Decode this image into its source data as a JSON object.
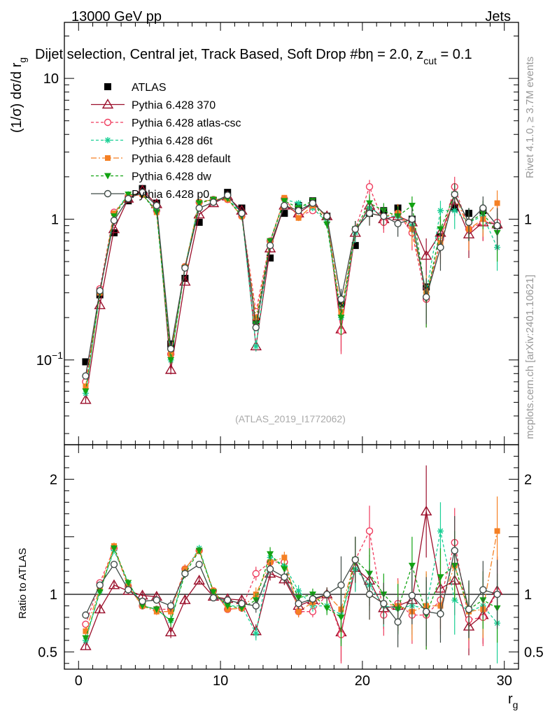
{
  "header": {
    "left": "13000 GeV pp",
    "right": "Jets",
    "title_main": "Dijet selection, Central jet, Track Based, Soft Drop #b",
    "title_eta": "η = 2.0, z",
    "title_cut": "cut",
    "title_value": " = 0.1"
  },
  "side": {
    "rivet": "Rivet 4.1.0, ≥ 3.7M events",
    "mcplots": "mcplots.cern.ch [arXiv:2401.10621]"
  },
  "watermark": "(ATLAS_2019_I1772062)",
  "colors": {
    "data": "#000000",
    "p370": "#9b0f2b",
    "atlascsc": "#ef3b5d",
    "d6t": "#19cf94",
    "default": "#f58024",
    "dw": "#13a313",
    "p0": "#3f4a46"
  },
  "chart_data": [
    {
      "type": "scatter",
      "name": "main",
      "ylabel": "(1/σ) dσ/d r",
      "ylabel_sub": "g",
      "yscale": "log",
      "ylim": [
        0.025,
        25
      ],
      "xlim": [
        -1,
        31
      ],
      "yticks": [
        {
          "value": 10,
          "label": "10"
        },
        {
          "value": 1,
          "label": "1"
        },
        {
          "value": 0.1,
          "label": "10",
          "sup": "−1"
        }
      ],
      "x": [
        0.5,
        1.5,
        2.5,
        3.5,
        4.5,
        5.5,
        6.5,
        7.5,
        8.5,
        9.5,
        10.5,
        11.5,
        12.5,
        13.5,
        14.5,
        15.5,
        16.5,
        17.5,
        18.5,
        19.5,
        20.5,
        21.5,
        22.5,
        23.5,
        24.5,
        25.5,
        26.5,
        27.5,
        28.5,
        29.5
      ],
      "series": [
        {
          "name": "ATLAS",
          "key": "data",
          "marker": "square",
          "values": [
            0.097,
            0.29,
            0.8,
            1.35,
            1.65,
            1.3,
            0.13,
            0.38,
            0.95,
            1.35,
            1.55,
            1.2,
            0.19,
            0.53,
            1.1,
            1.25,
            1.35,
            1.05,
            0.25,
            0.65,
            1.1,
            1.15,
            1.2,
            1.0,
            0.33,
            0.75,
            1.2,
            1.1,
            1.15,
            0.9
          ],
          "errors": [
            0.004,
            0.008,
            0.02,
            0.03,
            0.03,
            0.03,
            0.005,
            0.01,
            0.02,
            0.03,
            0.03,
            0.03,
            0.008,
            0.015,
            0.03,
            0.04,
            0.04,
            0.04,
            0.015,
            0.03,
            0.05,
            0.05,
            0.06,
            0.06,
            0.03,
            0.06,
            0.08,
            0.09,
            0.1,
            0.1
          ]
        },
        {
          "name": "Pythia 6.428 370",
          "key": "p370",
          "marker": "triangle-open",
          "values": [
            0.052,
            0.245,
            0.85,
            1.4,
            1.6,
            1.28,
            0.085,
            0.36,
            1.08,
            1.3,
            1.45,
            1.15,
            0.125,
            0.62,
            1.25,
            1.1,
            1.3,
            1.05,
            0.165,
            0.8,
            1.25,
            1.0,
            1.05,
            0.95,
            0.55,
            0.8,
            1.35,
            0.78,
            0.95,
            0.92
          ],
          "errors": [
            0.003,
            0.01,
            0.03,
            0.04,
            0.04,
            0.04,
            0.006,
            0.015,
            0.03,
            0.04,
            0.04,
            0.04,
            0.01,
            0.03,
            0.05,
            0.05,
            0.06,
            0.06,
            0.05,
            0.12,
            0.2,
            0.15,
            0.18,
            0.2,
            0.18,
            0.2,
            0.3,
            0.25,
            0.25,
            0.3
          ]
        },
        {
          "name": "Pythia 6.428 atlas-csc",
          "key": "atlascsc",
          "marker": "circle-open",
          "values": [
            0.07,
            0.32,
            1.12,
            1.45,
            1.5,
            1.15,
            0.11,
            0.46,
            1.32,
            1.38,
            1.38,
            1.05,
            0.22,
            0.7,
            1.4,
            1.05,
            1.15,
            1.05,
            0.16,
            0.85,
            1.7,
            0.95,
            1.1,
            0.8,
            0.27,
            0.72,
            1.7,
            0.85,
            0.95,
            0.95
          ],
          "errors": [
            0.003,
            0.01,
            0.03,
            0.04,
            0.04,
            0.04,
            0.006,
            0.015,
            0.03,
            0.04,
            0.04,
            0.04,
            0.01,
            0.03,
            0.05,
            0.05,
            0.06,
            0.06,
            0.05,
            0.12,
            0.2,
            0.15,
            0.18,
            0.2,
            0.1,
            0.2,
            0.3,
            0.25,
            0.25,
            0.3
          ]
        },
        {
          "name": "Pythia 6.428 d6t",
          "key": "d6t",
          "marker": "star",
          "values": [
            0.058,
            0.3,
            1.1,
            1.5,
            1.5,
            1.15,
            0.1,
            0.46,
            1.33,
            1.38,
            1.4,
            1.1,
            0.125,
            0.7,
            1.38,
            1.3,
            1.2,
            0.95,
            0.2,
            0.8,
            1.2,
            1.05,
            1.05,
            0.9,
            0.3,
            1.15,
            1.15,
            0.95,
            1.05,
            0.63
          ],
          "errors": [
            0.003,
            0.01,
            0.03,
            0.04,
            0.04,
            0.04,
            0.006,
            0.015,
            0.03,
            0.04,
            0.04,
            0.04,
            0.01,
            0.03,
            0.05,
            0.05,
            0.06,
            0.06,
            0.05,
            0.12,
            0.2,
            0.15,
            0.18,
            0.2,
            0.1,
            0.2,
            0.3,
            0.25,
            0.25,
            0.2
          ]
        },
        {
          "name": "Pythia 6.428 default",
          "key": "default",
          "marker": "square-filled",
          "values": [
            0.065,
            0.3,
            1.1,
            1.45,
            1.5,
            1.12,
            0.11,
            0.46,
            1.32,
            1.38,
            1.38,
            1.05,
            0.2,
            0.68,
            1.42,
            1.02,
            1.25,
            1.05,
            0.22,
            0.85,
            1.1,
            1.05,
            1.1,
            0.85,
            0.3,
            0.68,
            1.5,
            0.85,
            1.0,
            1.3
          ],
          "errors": [
            0.003,
            0.01,
            0.03,
            0.04,
            0.04,
            0.04,
            0.006,
            0.015,
            0.03,
            0.04,
            0.04,
            0.04,
            0.01,
            0.03,
            0.05,
            0.05,
            0.06,
            0.06,
            0.05,
            0.12,
            0.2,
            0.15,
            0.18,
            0.2,
            0.1,
            0.2,
            0.3,
            0.25,
            0.25,
            0.3
          ]
        },
        {
          "name": "Pythia 6.428 dw",
          "key": "dw",
          "marker": "triangle-down",
          "values": [
            0.06,
            0.3,
            1.05,
            1.5,
            1.5,
            1.12,
            0.1,
            0.45,
            1.3,
            1.38,
            1.4,
            1.05,
            0.18,
            0.7,
            1.35,
            1.2,
            1.35,
            0.92,
            0.2,
            0.85,
            1.3,
            1.15,
            1.05,
            1.25,
            0.27,
            0.85,
            1.5,
            0.95,
            1.1,
            0.8
          ],
          "errors": [
            0.003,
            0.01,
            0.03,
            0.04,
            0.04,
            0.04,
            0.006,
            0.015,
            0.03,
            0.04,
            0.04,
            0.04,
            0.01,
            0.03,
            0.05,
            0.05,
            0.06,
            0.06,
            0.05,
            0.12,
            0.2,
            0.15,
            0.18,
            0.2,
            0.1,
            0.2,
            0.3,
            0.25,
            0.25,
            0.3
          ]
        },
        {
          "name": "Pythia 6.428 p0",
          "key": "p0",
          "marker": "circle-open",
          "values": [
            0.077,
            0.31,
            0.98,
            1.4,
            1.55,
            1.25,
            0.12,
            0.45,
            1.2,
            1.32,
            1.48,
            1.1,
            0.17,
            0.65,
            1.25,
            1.15,
            1.3,
            1.05,
            0.27,
            0.85,
            1.1,
            1.05,
            0.93,
            1.0,
            0.28,
            0.63,
            1.5,
            0.95,
            1.2,
            0.9
          ],
          "errors": [
            0.003,
            0.01,
            0.03,
            0.04,
            0.04,
            0.04,
            0.006,
            0.015,
            0.03,
            0.04,
            0.04,
            0.04,
            0.01,
            0.03,
            0.05,
            0.05,
            0.06,
            0.06,
            0.05,
            0.12,
            0.2,
            0.15,
            0.18,
            0.2,
            0.1,
            0.2,
            0.3,
            0.25,
            0.25,
            0.3
          ]
        }
      ]
    },
    {
      "type": "scatter",
      "name": "ratio",
      "ylabel": "Ratio to ATLAS",
      "xlabel": "r",
      "xlabel_sub": "g",
      "yscale": "linear",
      "ylim": [
        0.35,
        2.3
      ],
      "xlim": [
        -1,
        31
      ],
      "yticks": [
        {
          "value": 0.5,
          "label": "0.5"
        },
        {
          "value": 1,
          "label": "1"
        },
        {
          "value": 2,
          "label": "2"
        }
      ],
      "xticks": [
        {
          "value": 0,
          "label": "0"
        },
        {
          "value": 10,
          "label": "10"
        },
        {
          "value": 20,
          "label": "20"
        },
        {
          "value": 30,
          "label": "30"
        }
      ],
      "x": [
        0.5,
        1.5,
        2.5,
        3.5,
        4.5,
        5.5,
        6.5,
        7.5,
        8.5,
        9.5,
        10.5,
        11.5,
        12.5,
        13.5,
        14.5,
        15.5,
        16.5,
        17.5,
        18.5,
        19.5,
        20.5,
        21.5,
        22.5,
        23.5,
        24.5,
        25.5,
        26.5,
        27.5,
        28.5,
        29.5
      ],
      "series": [
        {
          "name": "Pythia 6.428 370",
          "key": "p370",
          "marker": "triangle-open",
          "values": [
            0.55,
            0.87,
            1.08,
            1.03,
            0.99,
            0.98,
            0.67,
            0.95,
            1.12,
            0.98,
            0.96,
            0.95,
            0.68,
            1.18,
            1.13,
            0.9,
            0.95,
            1.0,
            0.67,
            1.23,
            1.12,
            0.88,
            0.9,
            0.95,
            1.72,
            1.05,
            1.12,
            0.72,
            0.82,
            1.03
          ],
          "errors": [
            0.03,
            0.03,
            0.03,
            0.03,
            0.03,
            0.03,
            0.05,
            0.04,
            0.03,
            0.03,
            0.03,
            0.03,
            0.06,
            0.06,
            0.05,
            0.05,
            0.05,
            0.06,
            0.25,
            0.2,
            0.22,
            0.18,
            0.22,
            0.25,
            0.4,
            0.25,
            0.3,
            0.25,
            0.25,
            0.3
          ]
        },
        {
          "name": "Pythia 6.428 atlas-csc",
          "key": "atlascsc",
          "marker": "circle-open",
          "values": [
            0.74,
            1.1,
            1.4,
            1.07,
            0.9,
            0.87,
            0.87,
            1.22,
            1.38,
            1.03,
            0.87,
            0.88,
            1.18,
            1.28,
            1.28,
            0.85,
            0.85,
            1.0,
            0.65,
            1.3,
            1.55,
            0.82,
            0.92,
            0.82,
            0.82,
            0.95,
            1.45,
            0.78,
            0.8,
            1.02
          ],
          "errors": [
            0.03,
            0.03,
            0.03,
            0.03,
            0.03,
            0.03,
            0.05,
            0.04,
            0.03,
            0.03,
            0.03,
            0.03,
            0.06,
            0.06,
            0.05,
            0.05,
            0.05,
            0.06,
            0.25,
            0.2,
            0.22,
            0.18,
            0.22,
            0.25,
            0.3,
            0.25,
            0.3,
            0.25,
            0.25,
            0.3
          ]
        },
        {
          "name": "Pythia 6.428 d6t",
          "key": "d6t",
          "marker": "star",
          "values": [
            0.6,
            1.03,
            1.38,
            1.1,
            0.9,
            0.87,
            0.77,
            1.2,
            1.4,
            1.02,
            0.9,
            0.9,
            0.66,
            1.32,
            1.25,
            1.03,
            0.9,
            0.9,
            0.82,
            1.22,
            1.08,
            0.9,
            0.88,
            0.9,
            0.88,
            1.55,
            0.95,
            0.85,
            0.9,
            0.75
          ],
          "errors": [
            0.03,
            0.03,
            0.03,
            0.03,
            0.03,
            0.03,
            0.05,
            0.04,
            0.03,
            0.03,
            0.03,
            0.03,
            0.06,
            0.06,
            0.05,
            0.05,
            0.05,
            0.06,
            0.25,
            0.2,
            0.22,
            0.18,
            0.22,
            0.25,
            0.3,
            0.25,
            0.3,
            0.25,
            0.25,
            0.35
          ]
        },
        {
          "name": "Pythia 6.428 default",
          "key": "default",
          "marker": "square-filled",
          "values": [
            0.68,
            1.05,
            1.42,
            1.07,
            0.9,
            0.85,
            0.85,
            1.22,
            1.38,
            1.03,
            0.87,
            0.88,
            1.0,
            1.28,
            1.32,
            0.85,
            0.93,
            1.0,
            0.87,
            1.3,
            1.0,
            0.92,
            0.9,
            0.85,
            0.9,
            0.9,
            1.25,
            0.85,
            0.87,
            1.55
          ],
          "errors": [
            0.03,
            0.03,
            0.03,
            0.03,
            0.03,
            0.03,
            0.05,
            0.04,
            0.03,
            0.03,
            0.03,
            0.03,
            0.06,
            0.06,
            0.05,
            0.05,
            0.05,
            0.06,
            0.25,
            0.2,
            0.22,
            0.18,
            0.22,
            0.25,
            0.3,
            0.25,
            0.3,
            0.25,
            0.25,
            0.3
          ]
        },
        {
          "name": "Pythia 6.428 dw",
          "key": "dw",
          "marker": "triangle-down",
          "values": [
            0.62,
            1.02,
            1.4,
            1.1,
            0.9,
            0.87,
            0.77,
            1.18,
            1.38,
            1.02,
            0.9,
            0.88,
            0.95,
            1.35,
            1.22,
            0.97,
            1.0,
            0.88,
            0.8,
            1.3,
            1.18,
            1.0,
            0.87,
            1.25,
            0.82,
            1.15,
            1.25,
            0.87,
            0.95,
            0.88
          ],
          "errors": [
            0.03,
            0.03,
            0.03,
            0.03,
            0.03,
            0.03,
            0.05,
            0.04,
            0.03,
            0.03,
            0.03,
            0.03,
            0.06,
            0.06,
            0.05,
            0.05,
            0.05,
            0.06,
            0.25,
            0.2,
            0.22,
            0.18,
            0.22,
            0.25,
            0.3,
            0.25,
            0.3,
            0.25,
            0.25,
            0.3
          ]
        },
        {
          "name": "Pythia 6.428 p0",
          "key": "p0",
          "marker": "circle-open",
          "values": [
            0.82,
            1.08,
            1.26,
            1.04,
            0.94,
            0.95,
            0.9,
            1.18,
            1.26,
            0.97,
            0.95,
            0.92,
            0.9,
            1.22,
            1.15,
            0.92,
            0.96,
            1.0,
            1.08,
            1.3,
            1.0,
            0.92,
            0.76,
            0.99,
            0.85,
            0.83,
            1.38,
            0.87,
            1.04,
            1.0
          ],
          "errors": [
            0.03,
            0.03,
            0.03,
            0.03,
            0.03,
            0.03,
            0.05,
            0.04,
            0.03,
            0.03,
            0.03,
            0.03,
            0.06,
            0.06,
            0.05,
            0.05,
            0.05,
            0.06,
            0.25,
            0.2,
            0.22,
            0.18,
            0.22,
            0.25,
            0.3,
            0.25,
            0.3,
            0.25,
            0.25,
            0.3
          ]
        }
      ]
    }
  ]
}
